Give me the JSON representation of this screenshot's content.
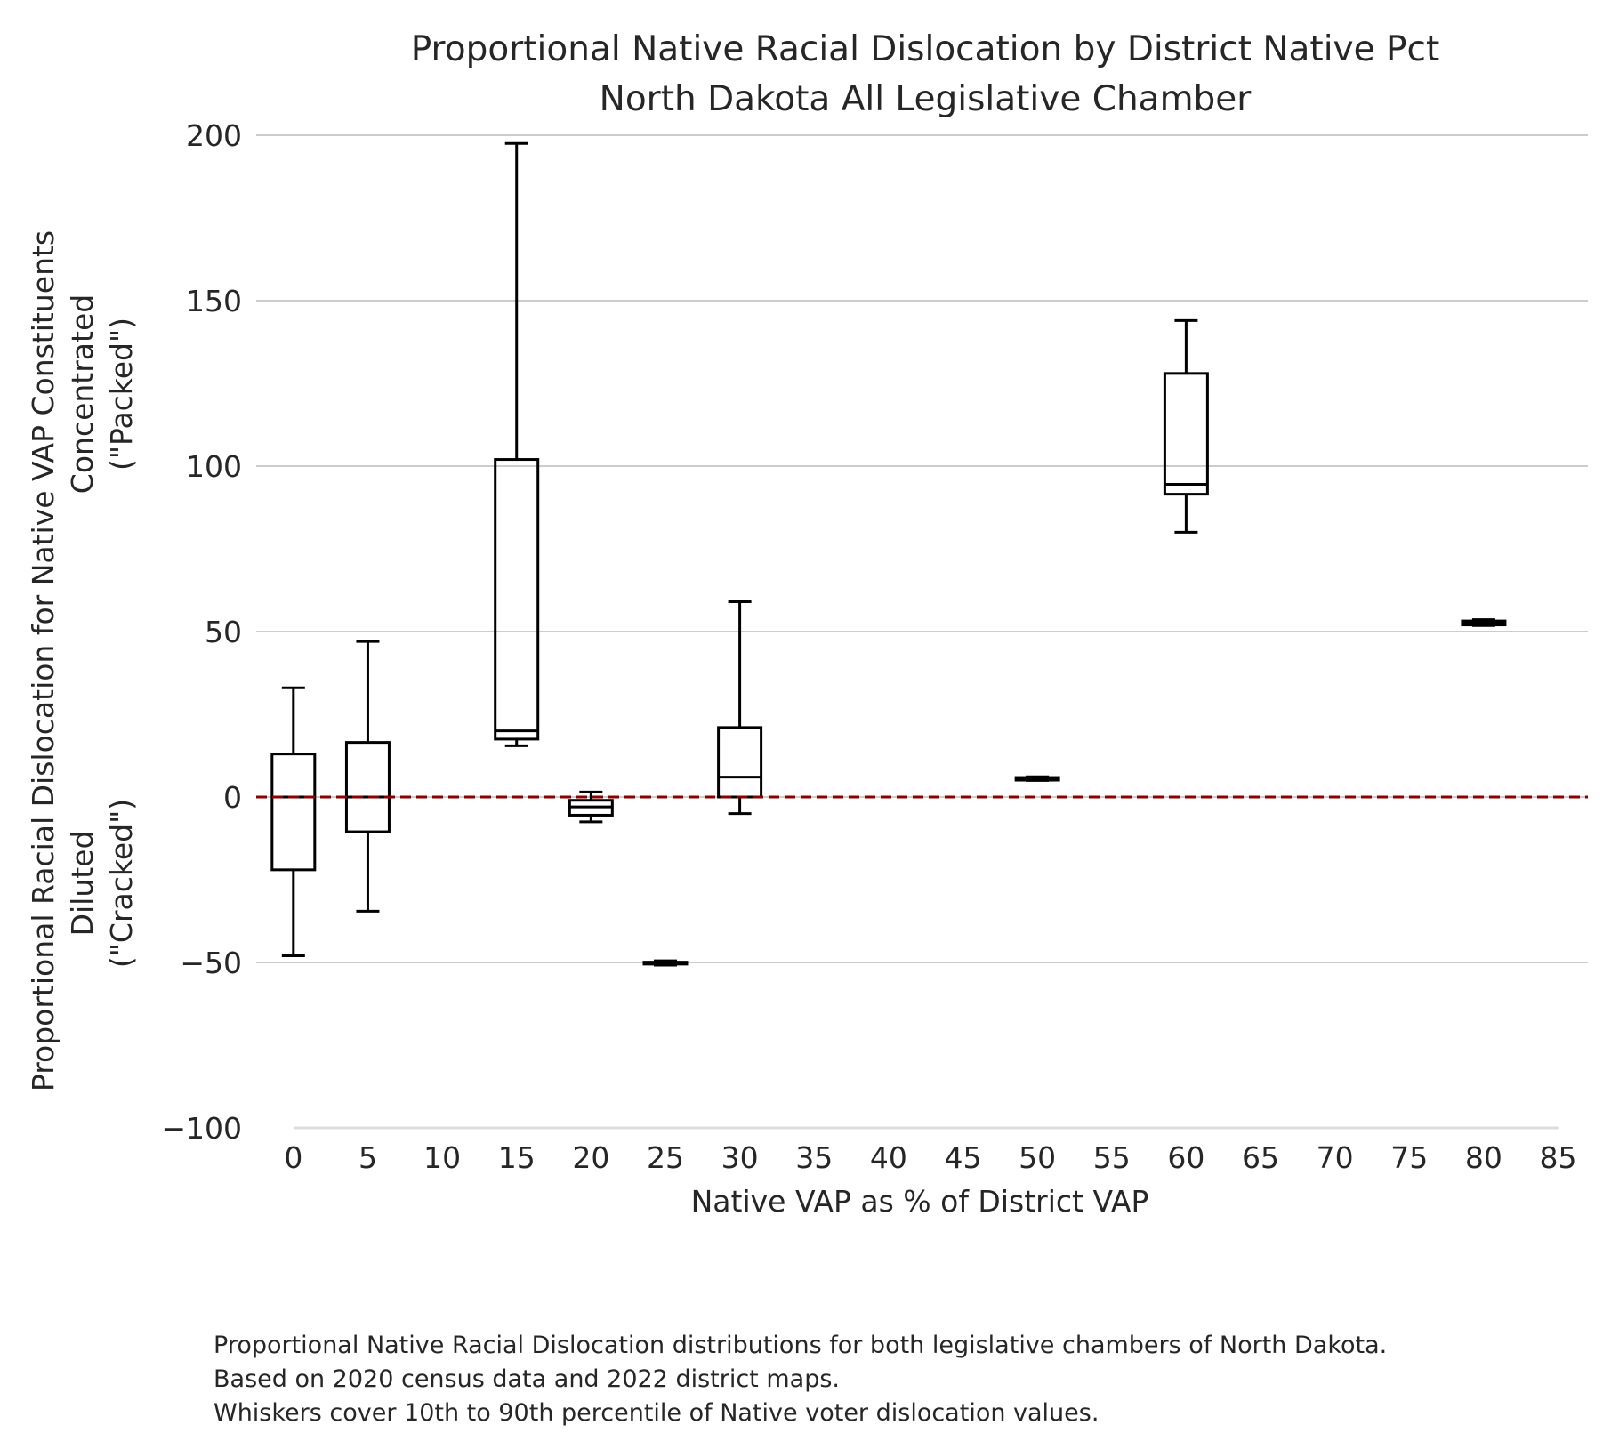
{
  "chart_data": {
    "type": "box",
    "title": [
      "Proportional Native Racial Dislocation by District Native Pct",
      "North Dakota All Legislative Chamber"
    ],
    "xlabel": "Native VAP as % of District VAP",
    "ylabel": "Proportional Racial Dislocation for Native VAP Constituents",
    "ylabel_top": [
      "Concentrated",
      "(\"Packed\")"
    ],
    "ylabel_bottom": [
      "Diluted",
      "(\"Cracked\")"
    ],
    "xticks": [
      0,
      5,
      10,
      15,
      20,
      25,
      30,
      35,
      40,
      45,
      50,
      55,
      60,
      65,
      70,
      75,
      80,
      85
    ],
    "yticks": [
      -100,
      -50,
      0,
      50,
      100,
      150,
      200
    ],
    "xlim": [
      -2.5,
      87
    ],
    "ylim": [
      -100,
      200
    ],
    "grid": "horizontal",
    "reference_line": {
      "y": 0,
      "style": "dashed",
      "color": "#8b0000"
    },
    "box_color": "#000000",
    "boxes": [
      {
        "x": 0,
        "whisker_low": -48,
        "q1": -22,
        "median": 0,
        "q3": 13,
        "whisker_high": 33
      },
      {
        "x": 5,
        "whisker_low": -34.5,
        "q1": -10.5,
        "median": 0,
        "q3": 16.5,
        "whisker_high": 47
      },
      {
        "x": 15,
        "whisker_low": 15.5,
        "q1": 17.5,
        "median": 20,
        "q3": 102,
        "whisker_high": 197.5
      },
      {
        "x": 20,
        "whisker_low": -7.5,
        "q1": -5.5,
        "median": -3,
        "q3": -1,
        "whisker_high": 1.5
      },
      {
        "x": 25,
        "whisker_low": -50.8,
        "q1": -50.5,
        "median": -50.2,
        "q3": -49.9,
        "whisker_high": -49.5
      },
      {
        "x": 30,
        "whisker_low": -5,
        "q1": 0,
        "median": 6,
        "q3": 21,
        "whisker_high": 59
      },
      {
        "x": 50,
        "whisker_low": 5,
        "q1": 5.1,
        "median": 5.5,
        "q3": 5.9,
        "whisker_high": 6.1
      },
      {
        "x": 60,
        "whisker_low": 80,
        "q1": 91.5,
        "median": 94.5,
        "q3": 128,
        "whisker_high": 144
      },
      {
        "x": 80,
        "whisker_low": 51.8,
        "q1": 52,
        "median": 52.6,
        "q3": 53.2,
        "whisker_high": 53.6
      }
    ],
    "caption": [
      "Proportional Native Racial Dislocation distributions for both legislative chambers of North Dakota.",
      "Based on 2020 census data and 2022 district maps.",
      "Whiskers cover 10th to 90th percentile of Native voter dislocation values."
    ]
  }
}
